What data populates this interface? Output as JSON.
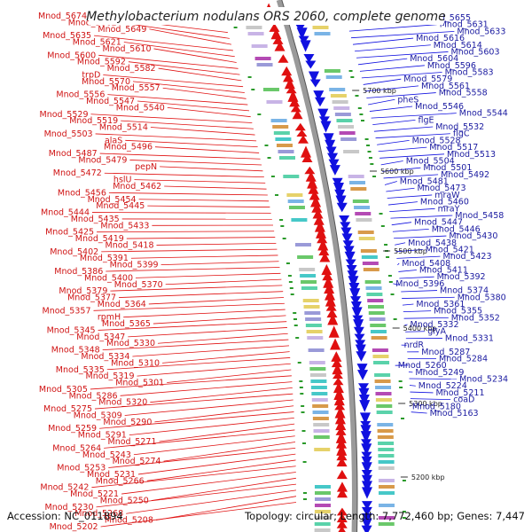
{
  "title": "Methylobacterium nodulans ORS 2060, complete genome",
  "footer": {
    "accession": "Accession: NC_011894",
    "summary": "Topology: circular; Length: 7,772,460 bp; Genes: 7,447"
  },
  "ticks": [
    "5700 kbp",
    "5600 kbp",
    "5500 kbp",
    "5400 kbp",
    "5300 kbp",
    "5200 kbp"
  ],
  "colors": {
    "left_strand": "#e01010",
    "right_strand": "#1010e0",
    "backbone": "#888888"
  },
  "left_labels": [
    "Mnod_5674",
    "Mnod_5662",
    "Mnod_5649",
    "Mnod_5635",
    "Mnod_5621",
    "Mnod_5610",
    "Mnod_5600",
    "Mnod_5592",
    "Mnod_5582",
    "trpD",
    "Mnod_5570",
    "Mnod_5557",
    "Mnod_5556",
    "Mnod_5547",
    "Mnod_5540",
    "Mnod_5529",
    "Mnod_5519",
    "Mnod_5514",
    "Mnod_5503",
    "alaS",
    "Mnod_5496",
    "Mnod_5487",
    "Mnod_5479",
    "pepN",
    "Mnod_5472",
    "hslU",
    "Mnod_5462",
    "Mnod_5456",
    "Mnod_5454",
    "Mnod_5445",
    "Mnod_5444",
    "Mnod_5435",
    "Mnod_5433",
    "Mnod_5425",
    "Mnod_5419",
    "Mnod_5418",
    "Mnod_5402",
    "Mnod_5391",
    "Mnod_5399",
    "Mnod_5386",
    "Mnod_5400",
    "Mnod_5370",
    "Mnod_5379",
    "Mnod_5377",
    "Mnod_5364",
    "Mnod_5357",
    "rpmH",
    "Mnod_5365",
    "Mnod_5345",
    "Mnod_5347",
    "Mnod_5330",
    "Mnod_5348",
    "Mnod_5334",
    "Mnod_5310",
    "Mnod_5335",
    "Mnod_5319",
    "Mnod_5301",
    "Mnod_5305",
    "Mnod_5286",
    "Mnod_5320",
    "Mnod_5275",
    "Mnod_5309",
    "Mnod_5290",
    "Mnod_5259",
    "Mnod_5291",
    "Mnod_5271",
    "Mnod_5264",
    "Mnod_5243",
    "Mnod_5274",
    "Mnod_5253",
    "Mnod_5231",
    "Mnod_5266",
    "Mnod_5242",
    "Mnod_5221",
    "Mnod_5250",
    "Mnod_5230",
    "Mnod_5268",
    "Mnod_5208",
    "Mnod_5202"
  ],
  "right_labels": [
    "Mnod_5655",
    "Mnod_5631",
    "Mnod_5633",
    "Mnod_5616",
    "Mnod_5614",
    "Mnod_5603",
    "Mnod_5604",
    "Mnod_5596",
    "Mnod_5583",
    "Mnod_5579",
    "Mnod_5561",
    "Mnod_5558",
    "pheS",
    "Mnod_5546",
    "Mnod_5544",
    "flgE",
    "Mnod_5532",
    "flgC",
    "Mnod_5528",
    "Mnod_5517",
    "Mnod_5513",
    "Mnod_5504",
    "Mnod_5501",
    "Mnod_5492",
    "Mnod_5481",
    "Mnod_5473",
    "mraW",
    "Mnod_5460",
    "mraY",
    "Mnod_5458",
    "Mnod_5447",
    "Mnod_5446",
    "Mnod_5430",
    "Mnod_5438",
    "Mnod_5421",
    "Mnod_5423",
    "Mnod_5408",
    "Mnod_5411",
    "Mnod_5392",
    "Mnod_5396",
    "Mnod_5374",
    "Mnod_5380",
    "Mnod_5361",
    "Mnod_5355",
    "Mnod_5352",
    "Mnod_5332",
    "glyA",
    "Mnod_5331",
    "nrdR",
    "Mnod_5287",
    "Mnod_5284",
    "Mnod_5260",
    "Mnod_5249",
    "Mnod_5234",
    "Mnod_5224",
    "Mnod_5211",
    "coaD",
    "Mnod_5180",
    "Mnod_5163"
  ]
}
